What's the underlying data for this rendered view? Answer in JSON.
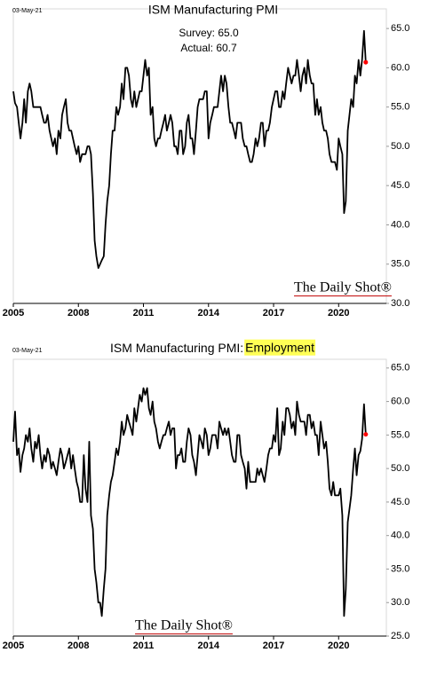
{
  "chart_data": [
    {
      "type": "line",
      "title": "ISM Manufacturing PMI",
      "date_label": "03-May-21",
      "annotations": [
        "Survey: 65.0",
        "Actual:  60.7"
      ],
      "watermark": "The Daily Shot®",
      "x": [
        2005,
        2005.08,
        2005.17,
        2005.25,
        2005.33,
        2005.42,
        2005.5,
        2005.58,
        2005.67,
        2005.75,
        2005.83,
        2005.92,
        2006,
        2006.08,
        2006.17,
        2006.25,
        2006.33,
        2006.42,
        2006.5,
        2006.58,
        2006.67,
        2006.75,
        2006.83,
        2006.92,
        2007,
        2007.08,
        2007.17,
        2007.25,
        2007.33,
        2007.42,
        2007.5,
        2007.58,
        2007.67,
        2007.75,
        2007.83,
        2007.92,
        2008,
        2008.08,
        2008.17,
        2008.25,
        2008.33,
        2008.42,
        2008.5,
        2008.58,
        2008.67,
        2008.75,
        2008.83,
        2008.92,
        2009,
        2009.08,
        2009.17,
        2009.25,
        2009.33,
        2009.42,
        2009.5,
        2009.58,
        2009.67,
        2009.75,
        2009.83,
        2009.92,
        2010,
        2010.08,
        2010.17,
        2010.25,
        2010.33,
        2010.42,
        2010.5,
        2010.58,
        2010.67,
        2010.75,
        2010.83,
        2010.92,
        2011,
        2011.08,
        2011.17,
        2011.25,
        2011.33,
        2011.42,
        2011.5,
        2011.58,
        2011.67,
        2011.75,
        2011.83,
        2011.92,
        2012,
        2012.08,
        2012.17,
        2012.25,
        2012.33,
        2012.42,
        2012.5,
        2012.58,
        2012.67,
        2012.75,
        2012.83,
        2012.92,
        2013,
        2013.08,
        2013.17,
        2013.25,
        2013.33,
        2013.42,
        2013.5,
        2013.58,
        2013.67,
        2013.75,
        2013.83,
        2013.92,
        2014,
        2014.08,
        2014.17,
        2014.25,
        2014.33,
        2014.42,
        2014.5,
        2014.58,
        2014.67,
        2014.75,
        2014.83,
        2014.92,
        2015,
        2015.08,
        2015.17,
        2015.25,
        2015.33,
        2015.42,
        2015.5,
        2015.58,
        2015.67,
        2015.75,
        2015.83,
        2015.92,
        2016,
        2016.08,
        2016.17,
        2016.25,
        2016.33,
        2016.42,
        2016.5,
        2016.58,
        2016.67,
        2016.75,
        2016.83,
        2016.92,
        2017,
        2017.08,
        2017.17,
        2017.25,
        2017.33,
        2017.42,
        2017.5,
        2017.58,
        2017.67,
        2017.75,
        2017.83,
        2017.92,
        2018,
        2018.08,
        2018.17,
        2018.25,
        2018.33,
        2018.42,
        2018.5,
        2018.58,
        2018.67,
        2018.75,
        2018.83,
        2018.92,
        2019,
        2019.08,
        2019.17,
        2019.25,
        2019.33,
        2019.42,
        2019.5,
        2019.58,
        2019.67,
        2019.75,
        2019.83,
        2019.92,
        2020,
        2020.08,
        2020.17,
        2020.25,
        2020.33,
        2020.42,
        2020.5,
        2020.58,
        2020.67,
        2020.75,
        2020.83,
        2020.92,
        2021,
        2021.08,
        2021.17,
        2021.25
      ],
      "series": [
        {
          "color": "#000000",
          "values": [
            57,
            55.5,
            55,
            53,
            51,
            53,
            56,
            53,
            57,
            58,
            57,
            55,
            55,
            55,
            55,
            55,
            54,
            53,
            53,
            54,
            52,
            51,
            50,
            51,
            49,
            52,
            51,
            54,
            55,
            56,
            53,
            52,
            52,
            51,
            50,
            49,
            50,
            48,
            49,
            49,
            49,
            50,
            50,
            49,
            44,
            38,
            36,
            34.5,
            35,
            35.5,
            36,
            40,
            43,
            45,
            49,
            52,
            52,
            55,
            54,
            55,
            58,
            56,
            60,
            60,
            59,
            56,
            55,
            57,
            55,
            56,
            57,
            57,
            59,
            61,
            59,
            60,
            54,
            55,
            51,
            50,
            51,
            51,
            52,
            53,
            54,
            52,
            53,
            54,
            53,
            50,
            50,
            49,
            52,
            52,
            49,
            50,
            53,
            54,
            51,
            51,
            49,
            52,
            55,
            56,
            56,
            56,
            57,
            57,
            51,
            53,
            54,
            55,
            55,
            55,
            57,
            59,
            57,
            59,
            58,
            55,
            53,
            53,
            52,
            51,
            53,
            53,
            53,
            51,
            50,
            50,
            49,
            48,
            48,
            49,
            51,
            50,
            51,
            53,
            53,
            50,
            52,
            52,
            53,
            55,
            56,
            57,
            57,
            55,
            55,
            57,
            56,
            58,
            60,
            59,
            58,
            59,
            59,
            61,
            59,
            57,
            59,
            60,
            58,
            61,
            59,
            58,
            58,
            54,
            56,
            54,
            55,
            53,
            52,
            52,
            51,
            49,
            48,
            48,
            48,
            47,
            51,
            50,
            49,
            41.5,
            43,
            52,
            54,
            56,
            55,
            59,
            58,
            61,
            59,
            61,
            64.7,
            60.7
          ]
        }
      ],
      "last_point_color": "#ff0000",
      "xlim": [
        2005,
        2022.2
      ],
      "xticks": [
        2005,
        2008,
        2011,
        2014,
        2017,
        2020
      ],
      "ylim": [
        30,
        67.5
      ],
      "yticks": [
        {
          "value": 30,
          "label": "30.0"
        },
        {
          "value": 35,
          "label": "35.0"
        },
        {
          "value": 40,
          "label": "40.0"
        },
        {
          "value": 45,
          "label": "45.0"
        },
        {
          "value": 50,
          "label": "50.0"
        },
        {
          "value": 55,
          "label": "55.0"
        },
        {
          "value": 60,
          "label": "60.0"
        },
        {
          "value": 65,
          "label": "65.0"
        }
      ]
    },
    {
      "type": "line",
      "title": "ISM Manufacturing PMI:",
      "title_highlight": "Employment",
      "highlight_color": "#ffff55",
      "date_label": "03-May-21",
      "watermark": "The Daily Shot®",
      "x": [
        2005,
        2005.08,
        2005.17,
        2005.25,
        2005.33,
        2005.42,
        2005.5,
        2005.58,
        2005.67,
        2005.75,
        2005.83,
        2005.92,
        2006,
        2006.08,
        2006.17,
        2006.25,
        2006.33,
        2006.42,
        2006.5,
        2006.58,
        2006.67,
        2006.75,
        2006.83,
        2006.92,
        2007,
        2007.08,
        2007.17,
        2007.25,
        2007.33,
        2007.42,
        2007.5,
        2007.58,
        2007.67,
        2007.75,
        2007.83,
        2007.92,
        2008,
        2008.08,
        2008.17,
        2008.25,
        2008.33,
        2008.42,
        2008.5,
        2008.58,
        2008.67,
        2008.75,
        2008.83,
        2008.92,
        2009,
        2009.08,
        2009.17,
        2009.25,
        2009.33,
        2009.42,
        2009.5,
        2009.58,
        2009.67,
        2009.75,
        2009.83,
        2009.92,
        2010,
        2010.08,
        2010.17,
        2010.25,
        2010.33,
        2010.42,
        2010.5,
        2010.58,
        2010.67,
        2010.75,
        2010.83,
        2010.92,
        2011,
        2011.08,
        2011.17,
        2011.25,
        2011.33,
        2011.42,
        2011.5,
        2011.58,
        2011.67,
        2011.75,
        2011.83,
        2011.92,
        2012,
        2012.08,
        2012.17,
        2012.25,
        2012.33,
        2012.42,
        2012.5,
        2012.58,
        2012.67,
        2012.75,
        2012.83,
        2012.92,
        2013,
        2013.08,
        2013.17,
        2013.25,
        2013.33,
        2013.42,
        2013.5,
        2013.58,
        2013.67,
        2013.75,
        2013.83,
        2013.92,
        2014,
        2014.08,
        2014.17,
        2014.25,
        2014.33,
        2014.42,
        2014.5,
        2014.58,
        2014.67,
        2014.75,
        2014.83,
        2014.92,
        2015,
        2015.08,
        2015.17,
        2015.25,
        2015.33,
        2015.42,
        2015.5,
        2015.58,
        2015.67,
        2015.75,
        2015.83,
        2015.92,
        2016,
        2016.08,
        2016.17,
        2016.25,
        2016.33,
        2016.42,
        2016.5,
        2016.58,
        2016.67,
        2016.75,
        2016.83,
        2016.92,
        2017,
        2017.08,
        2017.17,
        2017.25,
        2017.33,
        2017.42,
        2017.5,
        2017.58,
        2017.67,
        2017.75,
        2017.83,
        2017.92,
        2018,
        2018.08,
        2018.17,
        2018.25,
        2018.33,
        2018.42,
        2018.5,
        2018.58,
        2018.67,
        2018.75,
        2018.83,
        2018.92,
        2019,
        2019.08,
        2019.17,
        2019.25,
        2019.33,
        2019.42,
        2019.5,
        2019.58,
        2019.67,
        2019.75,
        2019.83,
        2019.92,
        2020,
        2020.08,
        2020.17,
        2020.25,
        2020.33,
        2020.42,
        2020.5,
        2020.58,
        2020.67,
        2020.75,
        2020.83,
        2020.92,
        2021,
        2021.08,
        2021.17,
        2021.25
      ],
      "series": [
        {
          "color": "#000000",
          "values": [
            54,
            58.5,
            52,
            53,
            49.5,
            52,
            53,
            55,
            54,
            56,
            53,
            51,
            54,
            53,
            55,
            52,
            50,
            52,
            51,
            53,
            52,
            50,
            51,
            50,
            49,
            51,
            53,
            52,
            50,
            51,
            52,
            53,
            50,
            52,
            50,
            48,
            47,
            45,
            45,
            52,
            47,
            45,
            54,
            43,
            41,
            35,
            33,
            30,
            30,
            28,
            32,
            35,
            43,
            46,
            48,
            49,
            51,
            53,
            52,
            54,
            57,
            55,
            56,
            58,
            57,
            56,
            55,
            59,
            57,
            59,
            61,
            60,
            62,
            61,
            62,
            59,
            58,
            60,
            57,
            56,
            54,
            53,
            54,
            55,
            55,
            56,
            57,
            55,
            56,
            56,
            50,
            52,
            52,
            53,
            51,
            51,
            54,
            56,
            55,
            52,
            51,
            49,
            52,
            55,
            54,
            53,
            56,
            55,
            52,
            53,
            55,
            55,
            55,
            53,
            57,
            56,
            55,
            56,
            55,
            56,
            54,
            52,
            51,
            51,
            55,
            55,
            52,
            51,
            50,
            47,
            51,
            48,
            48,
            48,
            48,
            50,
            49,
            50,
            49,
            48,
            50,
            52,
            53,
            53,
            55,
            54,
            59,
            52,
            53,
            57,
            55,
            59,
            59,
            58,
            56,
            57,
            55,
            60,
            58,
            57,
            57,
            57,
            55,
            58,
            58,
            56,
            57,
            55,
            55,
            52,
            57,
            55,
            53,
            54,
            51,
            47,
            46,
            48,
            46,
            46,
            46,
            47,
            43,
            28,
            32,
            42,
            44,
            46,
            50,
            53,
            49,
            52,
            52.6,
            54.4,
            59.6,
            55.1
          ]
        }
      ],
      "last_point_color": "#ff0000",
      "xlim": [
        2005,
        2022.2
      ],
      "xticks": [
        2005,
        2008,
        2011,
        2014,
        2017,
        2020
      ],
      "ylim": [
        25,
        66.3
      ],
      "yticks": [
        {
          "value": 25,
          "label": "25.0"
        },
        {
          "value": 30,
          "label": "30.0"
        },
        {
          "value": 35,
          "label": "35.0"
        },
        {
          "value": 40,
          "label": "40.0"
        },
        {
          "value": 45,
          "label": "45.0"
        },
        {
          "value": 50,
          "label": "50.0"
        },
        {
          "value": 55,
          "label": "55.0"
        },
        {
          "value": 60,
          "label": "60.0"
        },
        {
          "value": 65,
          "label": "65.0"
        }
      ]
    }
  ]
}
